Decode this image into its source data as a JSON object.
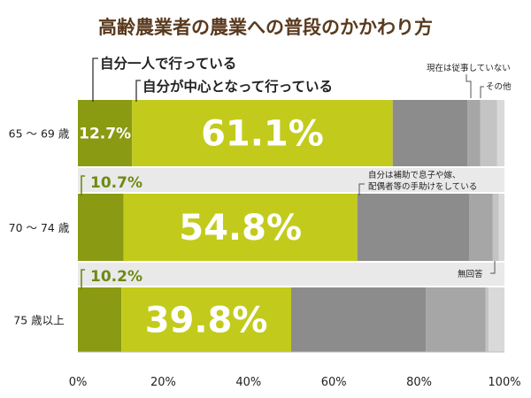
{
  "chart_data": {
    "type": "bar",
    "orientation": "horizontal",
    "stacked": true,
    "title": "高齢農業者の農業への普段のかかわり方",
    "categories": [
      "65 ～ 69 歳",
      "70 ～ 74 歳",
      "75 歳以上"
    ],
    "series": [
      {
        "name": "自分一人で行っている",
        "values": [
          12.7,
          10.7,
          10.2
        ],
        "color": "#8a9a12"
      },
      {
        "name": "自分が中心となって行っている",
        "values": [
          61.1,
          54.8,
          39.8
        ],
        "color": "#c2cb1c"
      },
      {
        "name": "自分は補助で息子や嫁、配偶者等の手助けをしている",
        "values": [
          17.5,
          26.2,
          31.6
        ],
        "color": "#8c8c8c"
      },
      {
        "name": "現在は従事していない",
        "values": [
          3.0,
          5.5,
          14.0
        ],
        "color": "#a6a6a6"
      },
      {
        "name": "その他",
        "values": [
          4.0,
          1.5,
          0.7
        ],
        "color": "#c4c4c4"
      },
      {
        "name": "無回答",
        "values": [
          1.7,
          1.3,
          3.7
        ],
        "color": "#d9d9d9"
      }
    ],
    "value_labels": [
      [
        "12.7%",
        "61.1%"
      ],
      [
        "10.7%",
        "54.8%"
      ],
      [
        "10.2%",
        "39.8%"
      ]
    ],
    "xlim": [
      0,
      100
    ],
    "xticks": [
      "0%",
      "20%",
      "40%",
      "60%",
      "80%",
      "100%"
    ],
    "legend": "annotations",
    "grid": false
  }
}
